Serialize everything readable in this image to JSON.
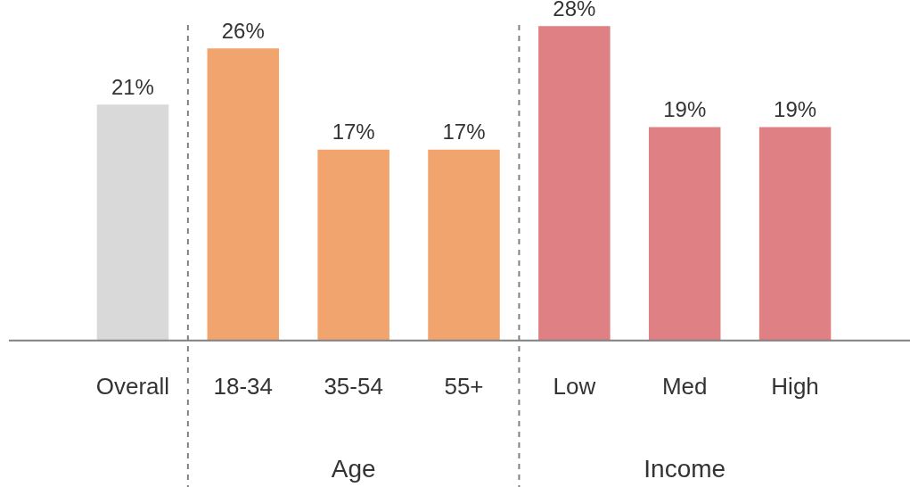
{
  "chart_data": {
    "type": "bar",
    "categories": [
      "Overall",
      "18-34",
      "35-54",
      "55+",
      "Low",
      "Med",
      "High"
    ],
    "values": [
      21,
      26,
      17,
      17,
      28,
      19,
      19
    ],
    "colors": [
      "#d9d9d9",
      "#f2a46f",
      "#f2a46f",
      "#f2a46f",
      "#de8084",
      "#de8084",
      "#de8084"
    ],
    "value_labels": [
      "21%",
      "26%",
      "17%",
      "17%",
      "28%",
      "19%",
      "19%"
    ],
    "annotations": [
      "Age",
      "Income"
    ],
    "grid": false,
    "legend": false,
    "tick_labels": "x"
  }
}
